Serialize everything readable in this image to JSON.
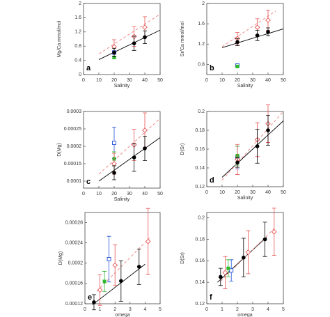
{
  "chart_data": [
    {
      "type": "scatter",
      "label": "a",
      "xlabel": "Salinity",
      "ylabel": "Mg/Ca mmol/mol",
      "xlim": [
        0,
        50
      ],
      "ylim": [
        0,
        2
      ],
      "xticks": [
        0,
        10,
        20,
        30,
        40,
        50
      ],
      "yticks": [
        0,
        0.4,
        0.8,
        1.2,
        1.6,
        2
      ],
      "series": [
        {
          "style": "line",
          "color": "#000000",
          "dash": false,
          "x": [
            10,
            50
          ],
          "values": [
            0.42,
            1.25
          ]
        },
        {
          "style": "line",
          "color": "#f08080",
          "dash": true,
          "x": [
            10,
            50
          ],
          "values": [
            0.58,
            1.7
          ]
        },
        {
          "style": "points",
          "marker": "square-open",
          "color": "#1f4fd8",
          "x": [
            20
          ],
          "values": [
            0.62
          ],
          "errors": [
            0.05
          ]
        },
        {
          "style": "points",
          "marker": "square",
          "color": "#2eb82e",
          "x": [
            20
          ],
          "values": [
            0.48
          ],
          "errors": [
            0.03
          ]
        },
        {
          "style": "points",
          "marker": "diamond",
          "color": "#e85050",
          "x": [
            20,
            33,
            40
          ],
          "values": [
            0.78,
            1.07,
            1.33
          ],
          "errors": [
            0.2,
            0.28,
            0.3
          ]
        },
        {
          "style": "points",
          "marker": "circle",
          "color": "#000000",
          "x": [
            20,
            33,
            40
          ],
          "values": [
            0.62,
            0.88,
            1.05
          ],
          "errors": [
            0.12,
            0.2,
            0.18
          ]
        }
      ]
    },
    {
      "type": "scatter",
      "label": "b",
      "xlabel": "Salinity",
      "ylabel": "Sr/Ca mmol/mol",
      "xlim": [
        0,
        50
      ],
      "ylim": [
        0.6,
        2
      ],
      "xticks": [
        0,
        10,
        20,
        30,
        40,
        50
      ],
      "yticks": [
        0.8,
        1.2,
        1.6,
        2
      ],
      "series": [
        {
          "style": "line",
          "color": "#000000",
          "dash": false,
          "x": [
            10,
            50
          ],
          "values": [
            1.13,
            1.5
          ]
        },
        {
          "style": "line",
          "color": "#f08080",
          "dash": true,
          "x": [
            10,
            45
          ],
          "values": [
            1.15,
            1.85
          ]
        },
        {
          "style": "points",
          "marker": "square-open",
          "color": "#1f4fd8",
          "x": [
            20
          ],
          "values": [
            0.78
          ],
          "errors": [
            0.02
          ]
        },
        {
          "style": "points",
          "marker": "square",
          "color": "#2eb82e",
          "x": [
            20
          ],
          "values": [
            0.76
          ],
          "errors": [
            0.02
          ]
        },
        {
          "style": "points",
          "marker": "diamond",
          "color": "#e85050",
          "x": [
            20,
            33,
            40
          ],
          "values": [
            1.31,
            1.53,
            1.67
          ],
          "errors": [
            0.12,
            0.17,
            0.2
          ]
        },
        {
          "style": "points",
          "marker": "circle",
          "color": "#000000",
          "x": [
            20,
            33,
            40
          ],
          "values": [
            1.24,
            1.37,
            1.44
          ],
          "errors": [
            0.07,
            0.1,
            0.08
          ]
        }
      ]
    },
    {
      "type": "scatter",
      "label": "c",
      "xlabel": "Salinity",
      "ylabel": "D(Mg)",
      "xlim": [
        0,
        50
      ],
      "ylim": [
        8e-05,
        0.0003
      ],
      "xticks": [
        0,
        10,
        20,
        30,
        40,
        50
      ],
      "yticks": [
        0.0001,
        0.00015,
        0.0002,
        0.00025,
        0.0003
      ],
      "series": [
        {
          "style": "line",
          "color": "#000000",
          "dash": false,
          "x": [
            10,
            50
          ],
          "values": [
            0.0001,
            0.000225
          ]
        },
        {
          "style": "line",
          "color": "#f08080",
          "dash": true,
          "x": [
            10,
            50
          ],
          "values": [
            0.00012,
            0.00028
          ]
        },
        {
          "style": "points",
          "marker": "square-open",
          "color": "#1f4fd8",
          "x": [
            20
          ],
          "values": [
            0.00021
          ],
          "errors": [
            4.5e-05
          ]
        },
        {
          "style": "points",
          "marker": "square",
          "color": "#2eb82e",
          "x": [
            20
          ],
          "values": [
            0.000164
          ],
          "errors": [
            2e-05
          ]
        },
        {
          "style": "points",
          "marker": "diamond",
          "color": "#e85050",
          "x": [
            20,
            33,
            40
          ],
          "values": [
            0.00015,
            0.000204,
            0.000246
          ],
          "errors": [
            3e-05,
            4.5e-05,
            5e-05
          ]
        },
        {
          "style": "points",
          "marker": "circle",
          "color": "#000000",
          "x": [
            20,
            33,
            40
          ],
          "values": [
            0.000124,
            0.000168,
            0.000194
          ],
          "errors": [
            2e-05,
            4e-05,
            3.5e-05
          ]
        }
      ]
    },
    {
      "type": "scatter",
      "label": "d",
      "xlabel": "Salinity",
      "ylabel": "D(Sr)",
      "xlim": [
        0,
        50
      ],
      "ylim": [
        0.12,
        0.2
      ],
      "xticks": [
        0,
        10,
        20,
        30,
        40,
        50
      ],
      "yticks": [
        0.12,
        0.14,
        0.16,
        0.18,
        0.2
      ],
      "series": [
        {
          "style": "line",
          "color": "#000000",
          "dash": false,
          "x": [
            10,
            50
          ],
          "values": [
            0.13,
            0.19
          ]
        },
        {
          "style": "line",
          "color": "#f08080",
          "dash": true,
          "x": [
            10,
            50
          ],
          "values": [
            0.127,
            0.2
          ]
        },
        {
          "style": "points",
          "marker": "square-open",
          "color": "#1f4fd8",
          "x": [
            20
          ],
          "values": [
            0.151
          ],
          "errors": [
            0.012
          ]
        },
        {
          "style": "points",
          "marker": "square",
          "color": "#2eb82e",
          "x": [
            20
          ],
          "values": [
            0.153
          ],
          "errors": [
            0.01
          ]
        },
        {
          "style": "points",
          "marker": "diamond",
          "color": "#e85050",
          "x": [
            20,
            33,
            40
          ],
          "values": [
            0.149,
            0.17,
            0.187
          ],
          "errors": [
            0.016,
            0.018,
            0.02
          ]
        },
        {
          "style": "points",
          "marker": "circle",
          "color": "#000000",
          "x": [
            20,
            33,
            40
          ],
          "values": [
            0.1457,
            0.163,
            0.18
          ],
          "errors": [
            0.005,
            0.018,
            0.016
          ]
        }
      ]
    },
    {
      "type": "scatter",
      "label": "e",
      "xlabel": "omega",
      "ylabel": "D(Mg)",
      "xlim": [
        0,
        5
      ],
      "ylim": [
        0.00012,
        0.0003
      ],
      "xticks": [
        0,
        1,
        2,
        3,
        4,
        5
      ],
      "yticks": [
        0.00012,
        0.00016,
        0.0002,
        0.00024,
        0.00028
      ],
      "series": [
        {
          "style": "line",
          "color": "#000000",
          "dash": false,
          "x": [
            0.5,
            4
          ],
          "values": [
            0.000118,
            0.000198
          ]
        },
        {
          "style": "line",
          "color": "#f08080",
          "dash": true,
          "x": [
            0.8,
            4.3
          ],
          "values": [
            0.000145,
            0.00025
          ]
        },
        {
          "style": "points",
          "marker": "square-open",
          "color": "#1f4fd8",
          "x": [
            1.6
          ],
          "values": [
            0.000208
          ],
          "errors": [
            4.5e-05
          ]
        },
        {
          "style": "points",
          "marker": "square",
          "color": "#2eb82e",
          "x": [
            1.3
          ],
          "values": [
            0.000164
          ],
          "errors": [
            2e-05
          ]
        },
        {
          "style": "points",
          "marker": "diamond",
          "color": "#e85050",
          "x": [
            1.0,
            2.0,
            4.2
          ],
          "values": [
            0.000147,
            0.000196,
            0.000243
          ],
          "errors": [
            3e-05,
            4e-05,
            6.5e-05
          ]
        },
        {
          "style": "points",
          "marker": "circle",
          "color": "#000000",
          "x": [
            0.6,
            2.4,
            3.6
          ],
          "values": [
            0.000123,
            0.000165,
            0.000193
          ],
          "errors": [
            1.5e-05,
            4e-05,
            3.5e-05
          ]
        }
      ]
    },
    {
      "type": "scatter",
      "label": "f",
      "xlabel": "omega",
      "ylabel": "D(Sr)",
      "xlim": [
        0,
        5
      ],
      "ylim": [
        0.12,
        0.205
      ],
      "xticks": [
        0,
        1,
        2,
        3,
        4,
        5
      ],
      "yticks": [
        0.12,
        0.14,
        0.16,
        0.18,
        0.2
      ],
      "series": [
        {
          "style": "line",
          "color": "#000000",
          "dash": false,
          "x": [
            0.7,
            3.9
          ],
          "values": [
            0.14,
            0.182
          ]
        },
        {
          "style": "line",
          "color": "#f08080",
          "dash": true,
          "x": [
            0.9,
            4.4
          ],
          "values": [
            0.141,
            0.19
          ]
        },
        {
          "style": "points",
          "marker": "square-open",
          "color": "#1f4fd8",
          "x": [
            1.6
          ],
          "values": [
            0.151
          ],
          "errors": [
            0.01
          ]
        },
        {
          "style": "points",
          "marker": "square",
          "color": "#2eb82e",
          "x": [
            1.4
          ],
          "values": [
            0.153
          ],
          "errors": [
            0.008
          ]
        },
        {
          "style": "points",
          "marker": "diamond",
          "color": "#e85050",
          "x": [
            1.2,
            2.7,
            4.4
          ],
          "values": [
            0.149,
            0.168,
            0.187
          ],
          "errors": [
            0.015,
            0.02,
            0.022
          ]
        },
        {
          "style": "points",
          "marker": "circle",
          "color": "#000000",
          "x": [
            0.9,
            2.4,
            3.8
          ],
          "values": [
            0.145,
            0.163,
            0.18
          ],
          "errors": [
            0.008,
            0.018,
            0.016
          ]
        }
      ]
    }
  ]
}
